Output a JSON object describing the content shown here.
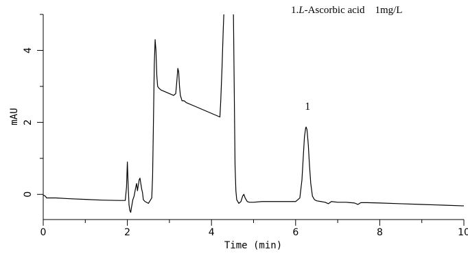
{
  "chart_data": {
    "type": "line",
    "xlabel": "Time (min)",
    "ylabel": "mAU",
    "xlim": [
      0,
      10
    ],
    "ylim": [
      -0.7,
      5.0
    ],
    "x_ticks": [
      "0",
      "2",
      "4",
      "6",
      "8",
      "10"
    ],
    "y_ticks": [
      "0",
      "2",
      "4"
    ],
    "grid": false,
    "annotation": "1.L-Ascorbic acid　1mg/L",
    "annotation_parts": {
      "prefix": "1.",
      "italic": "L",
      "suffix": "-Ascorbic acid　1mg/L"
    },
    "peak_labels": [
      {
        "text": "1",
        "x": 6.3,
        "y": 2.2
      }
    ],
    "series": [
      {
        "x": [
          0.0,
          0.05,
          0.08,
          0.3,
          0.6,
          1.0,
          1.4,
          1.8,
          1.95,
          1.98,
          2.0,
          2.02,
          2.04,
          2.06,
          2.08,
          2.1,
          2.13,
          2.16,
          2.2,
          2.22,
          2.24,
          2.26,
          2.28,
          2.3,
          2.32,
          2.34,
          2.36,
          2.38,
          2.42,
          2.5,
          2.58,
          2.6,
          2.62,
          2.64,
          2.66,
          2.68,
          2.7,
          2.72,
          2.75,
          2.8,
          2.9,
          3.0,
          3.1,
          3.15,
          3.18,
          3.2,
          3.22,
          3.24,
          3.26,
          3.3,
          3.35,
          3.4,
          3.6,
          3.8,
          4.0,
          4.2,
          4.22,
          4.25,
          4.28,
          4.3,
          4.32,
          4.34,
          4.36,
          4.4,
          4.45,
          4.5,
          4.52,
          4.54,
          4.56,
          4.58,
          4.6,
          4.65,
          4.7,
          4.74,
          4.77,
          4.8,
          4.85,
          4.9,
          5.0,
          5.2,
          5.4,
          5.6,
          5.8,
          6.0,
          6.1,
          6.15,
          6.18,
          6.21,
          6.24,
          6.25,
          6.27,
          6.3,
          6.33,
          6.36,
          6.4,
          6.45,
          6.5,
          6.6,
          6.7,
          6.78,
          6.85,
          7.0,
          7.2,
          7.4,
          7.48,
          7.55,
          7.7,
          8.0,
          8.5,
          9.0,
          9.5,
          10.0
        ],
        "y": [
          -0.02,
          -0.05,
          -0.1,
          -0.1,
          -0.12,
          -0.14,
          -0.16,
          -0.17,
          -0.17,
          0.2,
          0.9,
          0.2,
          -0.3,
          -0.45,
          -0.5,
          -0.35,
          -0.15,
          -0.05,
          0.2,
          0.3,
          0.1,
          0.25,
          0.4,
          0.45,
          0.3,
          0.15,
          0.05,
          -0.15,
          -0.2,
          -0.25,
          -0.1,
          0.5,
          2.0,
          3.6,
          4.3,
          4.0,
          3.3,
          3.0,
          2.95,
          2.9,
          2.85,
          2.8,
          2.75,
          2.8,
          3.2,
          3.5,
          3.4,
          3.0,
          2.75,
          2.6,
          2.6,
          2.55,
          2.45,
          2.35,
          2.25,
          2.15,
          2.6,
          3.5,
          4.6,
          5.2,
          5.5,
          5.5,
          5.5,
          5.5,
          5.5,
          5.5,
          5.2,
          3.0,
          0.8,
          0.1,
          -0.15,
          -0.25,
          -0.2,
          -0.05,
          0.0,
          -0.1,
          -0.2,
          -0.22,
          -0.22,
          -0.2,
          -0.2,
          -0.2,
          -0.2,
          -0.2,
          -0.1,
          0.4,
          1.0,
          1.6,
          1.85,
          1.87,
          1.8,
          1.4,
          0.8,
          0.3,
          -0.05,
          -0.15,
          -0.18,
          -0.2,
          -0.22,
          -0.26,
          -0.2,
          -0.22,
          -0.22,
          -0.24,
          -0.28,
          -0.23,
          -0.23,
          -0.24,
          -0.26,
          -0.28,
          -0.3,
          -0.32
        ]
      }
    ]
  }
}
